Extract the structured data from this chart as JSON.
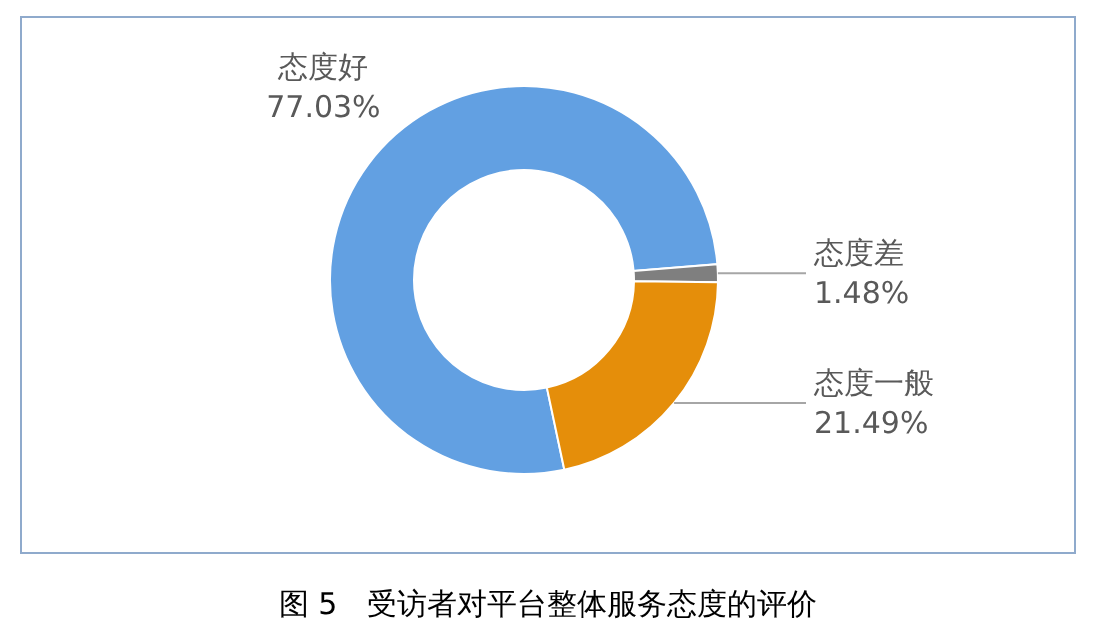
{
  "chart_data": {
    "type": "donut",
    "title": "图 5　受访者对平台整体服务态度的评价",
    "categories": [
      "态度好",
      "态度差",
      "态度一般"
    ],
    "values": [
      77.03,
      1.48,
      21.49
    ],
    "value_labels": [
      "77.03%",
      "1.48%",
      "21.49%"
    ],
    "colors": [
      "#62a0e2",
      "#7f7f7f",
      "#e58e0a"
    ],
    "legend": false
  }
}
